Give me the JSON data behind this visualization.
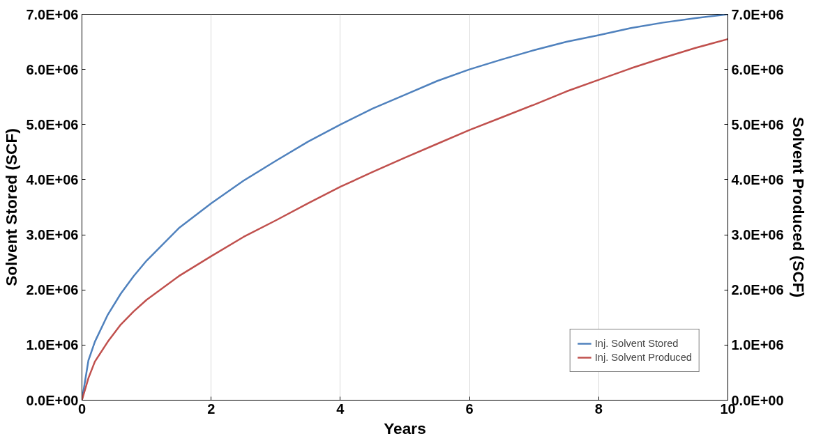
{
  "chart_data": {
    "type": "line",
    "xlabel": "Years",
    "ylabel": "Solvent Stored (SCF)",
    "y2label": "Solvent Produced (SCF)",
    "x": [
      0,
      0.1,
      0.2,
      0.4,
      0.6,
      0.8,
      1,
      1.5,
      2,
      2.5,
      3,
      3.5,
      4,
      4.5,
      5,
      5.5,
      6,
      6.5,
      7,
      7.5,
      8,
      8.5,
      9,
      9.5,
      10
    ],
    "series": [
      {
        "name": "Inj. Solvent Stored",
        "color": "#4f81bd",
        "values": [
          0,
          720000,
          1060000,
          1550000,
          1930000,
          2250000,
          2530000,
          3120000,
          3570000,
          3980000,
          4340000,
          4690000,
          5000000,
          5290000,
          5540000,
          5790000,
          6000000,
          6180000,
          6350000,
          6500000,
          6620000,
          6750000,
          6850000,
          6930000,
          7000000
        ]
      },
      {
        "name": "Inj. Solvent Produced",
        "color": "#c0504d",
        "values": [
          0,
          400000,
          700000,
          1060000,
          1370000,
          1610000,
          1820000,
          2250000,
          2610000,
          2960000,
          3260000,
          3570000,
          3870000,
          4140000,
          4400000,
          4650000,
          4900000,
          5130000,
          5360000,
          5600000,
          5810000,
          6020000,
          6210000,
          6390000,
          6550000
        ]
      }
    ],
    "xlim": [
      0,
      10
    ],
    "xticks": [
      0,
      2,
      4,
      6,
      8,
      10
    ],
    "ylim": [
      0,
      7000000
    ],
    "yticks": [
      {
        "value": 0,
        "label": "0.0E+00"
      },
      {
        "value": 1000000,
        "label": "1.0E+06"
      },
      {
        "value": 2000000,
        "label": "2.0E+06"
      },
      {
        "value": 3000000,
        "label": "3.0E+06"
      },
      {
        "value": 4000000,
        "label": "4.0E+06"
      },
      {
        "value": 5000000,
        "label": "5.0E+06"
      },
      {
        "value": 6000000,
        "label": "6.0E+06"
      },
      {
        "value": 7000000,
        "label": "7.0E+06"
      }
    ],
    "y2lim": [
      0,
      7000000
    ],
    "y2ticks": [
      {
        "value": 0,
        "label": "0.0E+00"
      },
      {
        "value": 1000000,
        "label": "1.0E+06"
      },
      {
        "value": 2000000,
        "label": "2.0E+06"
      },
      {
        "value": 3000000,
        "label": "3.0E+06"
      },
      {
        "value": 4000000,
        "label": "4.0E+06"
      },
      {
        "value": 5000000,
        "label": "5.0E+06"
      },
      {
        "value": 6000000,
        "label": "6.0E+06"
      },
      {
        "value": 7000000,
        "label": "7.0E+06"
      }
    ],
    "grid": "x",
    "legend": "bottom right",
    "marker": "none",
    "line_style": "solid"
  }
}
